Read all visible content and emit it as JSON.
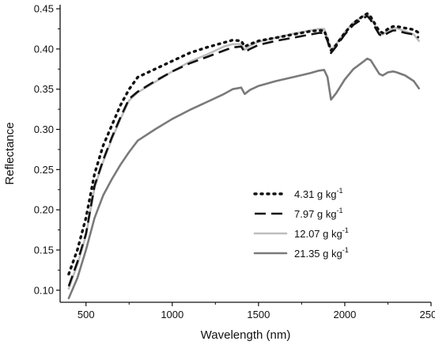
{
  "chart_data": {
    "type": "line",
    "xlabel": "Wavelength (nm)",
    "ylabel": "Reflectance",
    "xlim": [
      350,
      2500
    ],
    "ylim": [
      0.085,
      0.455
    ],
    "x_ticks": [
      500,
      1000,
      1500,
      2000,
      2500
    ],
    "x_tick_labels": [
      "500",
      "1000",
      "1500",
      "2000",
      "2500"
    ],
    "y_ticks": [
      0.1,
      0.15,
      0.2,
      0.25,
      0.3,
      0.35,
      0.4,
      0.45
    ],
    "y_tick_labels": [
      "0.10",
      "0.15",
      "0.20",
      "0.25",
      "0.30",
      "0.35",
      "0.40",
      "0.45"
    ],
    "grid": false,
    "legend_position": "center-right",
    "x": [
      400,
      450,
      500,
      550,
      600,
      650,
      700,
      750,
      800,
      900,
      1000,
      1100,
      1200,
      1300,
      1350,
      1400,
      1420,
      1450,
      1500,
      1600,
      1700,
      1800,
      1850,
      1880,
      1900,
      1920,
      1950,
      2000,
      2050,
      2100,
      2130,
      2150,
      2200,
      2220,
      2250,
      2280,
      2300,
      2350,
      2400,
      2430
    ],
    "series": [
      {
        "name": "4.31 g kg",
        "name_sup": "-1",
        "color": "#111111",
        "dash": "dotted",
        "values": [
          0.12,
          0.15,
          0.19,
          0.245,
          0.28,
          0.305,
          0.33,
          0.35,
          0.365,
          0.375,
          0.385,
          0.395,
          0.402,
          0.408,
          0.411,
          0.41,
          0.403,
          0.406,
          0.41,
          0.414,
          0.418,
          0.422,
          0.423,
          0.423,
          0.412,
          0.398,
          0.405,
          0.42,
          0.432,
          0.44,
          0.444,
          0.44,
          0.422,
          0.42,
          0.425,
          0.428,
          0.428,
          0.426,
          0.424,
          0.42
        ]
      },
      {
        "name": "7.97 g kg",
        "name_sup": "-1",
        "color": "#111111",
        "dash": "dashed",
        "values": [
          0.105,
          0.135,
          0.17,
          0.23,
          0.262,
          0.29,
          0.315,
          0.338,
          0.347,
          0.36,
          0.372,
          0.382,
          0.39,
          0.398,
          0.402,
          0.403,
          0.396,
          0.4,
          0.405,
          0.41,
          0.414,
          0.418,
          0.42,
          0.42,
          0.41,
          0.395,
          0.403,
          0.418,
          0.43,
          0.437,
          0.441,
          0.436,
          0.418,
          0.416,
          0.42,
          0.423,
          0.423,
          0.42,
          0.418,
          0.414
        ]
      },
      {
        "name": "12.07 g kg",
        "name_sup": "-1",
        "color": "#bdbdbd",
        "dash": "solid",
        "values": [
          0.102,
          0.132,
          0.168,
          0.228,
          0.26,
          0.288,
          0.313,
          0.336,
          0.346,
          0.359,
          0.372,
          0.384,
          0.393,
          0.403,
          0.406,
          0.406,
          0.399,
          0.404,
          0.409,
          0.414,
          0.419,
          0.423,
          0.425,
          0.425,
          0.414,
          0.398,
          0.406,
          0.421,
          0.433,
          0.44,
          0.444,
          0.439,
          0.42,
          0.418,
          0.423,
          0.426,
          0.426,
          0.422,
          0.418,
          0.41
        ]
      },
      {
        "name": "21.35 g kg",
        "name_sup": "-1",
        "color": "#7a7a7a",
        "dash": "solid",
        "values": [
          0.09,
          0.115,
          0.15,
          0.19,
          0.218,
          0.238,
          0.256,
          0.272,
          0.286,
          0.3,
          0.313,
          0.324,
          0.334,
          0.344,
          0.35,
          0.352,
          0.344,
          0.349,
          0.354,
          0.36,
          0.365,
          0.37,
          0.373,
          0.374,
          0.365,
          0.337,
          0.345,
          0.362,
          0.375,
          0.383,
          0.388,
          0.386,
          0.369,
          0.367,
          0.371,
          0.372,
          0.371,
          0.367,
          0.36,
          0.351
        ]
      }
    ]
  }
}
